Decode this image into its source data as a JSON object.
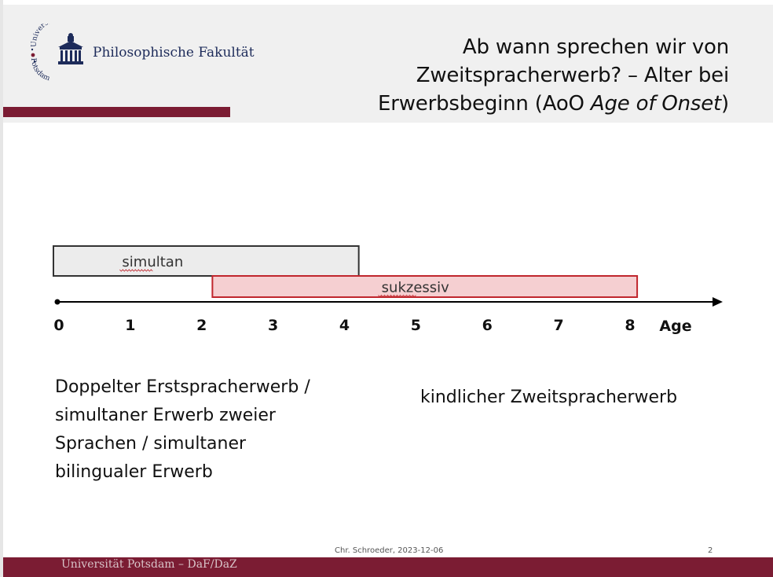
{
  "header": {
    "logo_arc_text": "Universität",
    "logo_arc_text_bottom": "Potsdam",
    "faculty": "Philosophische Fakultät",
    "title_line1": "Ab wann sprechen wir von",
    "title_line2": "Zweitspracherwerb? – Alter bei",
    "title_line3_a": "Erwerbsbeginn (AoO ",
    "title_line3_italic": "Age of Onset",
    "title_line3_b": ")"
  },
  "chart_data": {
    "type": "timeline",
    "xlabel": "Age",
    "ticks": [
      0,
      1,
      2,
      3,
      4,
      5,
      6,
      7,
      8
    ],
    "xlim": [
      0,
      8
    ],
    "bars": [
      {
        "label": "simultan",
        "start": 0,
        "end": 4.2,
        "color": "#ececec",
        "stroke": "#333333"
      },
      {
        "label": "sukzessiv",
        "start": 2.15,
        "end": 8.1,
        "color": "#f5cfd1",
        "stroke": "#c0262d"
      }
    ]
  },
  "body": {
    "left_lines": [
      "Doppelter Erstspracherwerb /",
      "simultaner Erwerb zweier",
      "Sprachen / simultaner",
      "bilingualer Erwerb"
    ],
    "right_text": "kindlicher Zweitspracherwerb"
  },
  "footer": {
    "author": "Chr. Schroeder, 2023-12-06",
    "page": "2",
    "university": "Universität Potsdam – DaF/DaZ"
  },
  "colors": {
    "brand": "#7b1c33",
    "navy": "#1d2b5a"
  }
}
